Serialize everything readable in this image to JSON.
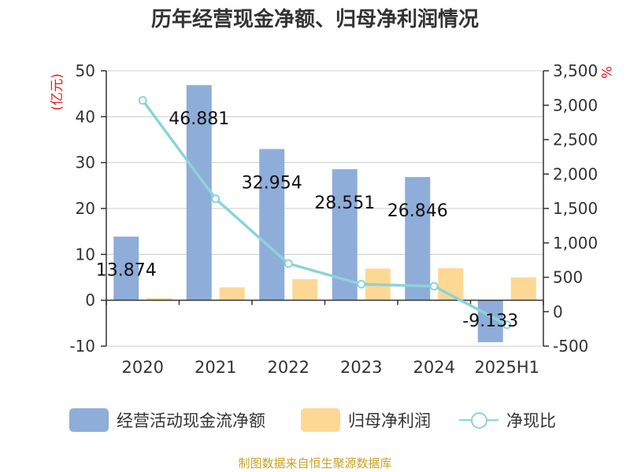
{
  "title": "历年经营现金净额、归母净利润情况",
  "source": "制图数据来自恒生聚源数据库",
  "chart_data": {
    "type": "bar",
    "categories": [
      "2020",
      "2021",
      "2022",
      "2023",
      "2024",
      "2025H1"
    ],
    "y_left": {
      "label": "(亿元)",
      "min": -10,
      "max": 50,
      "ticks": [
        "-10",
        "0",
        "10",
        "20",
        "30",
        "40",
        "50"
      ]
    },
    "y_right": {
      "label": "%",
      "min": -500,
      "max": 3500,
      "ticks": [
        "-500",
        "0",
        "500",
        "1,000",
        "1,500",
        "2,000",
        "2,500",
        "3,000",
        "3,500"
      ]
    },
    "series": [
      {
        "name": "经营活动现金流净额",
        "type": "bar",
        "axis": "left",
        "color": "#8eadd9",
        "values": [
          13.874,
          46.881,
          32.954,
          28.551,
          26.846,
          -9.133
        ],
        "labels": [
          "13.874",
          "46.881",
          "32.954",
          "28.551",
          "26.846",
          "-9.133"
        ]
      },
      {
        "name": "归母净利润",
        "type": "bar",
        "axis": "left",
        "color": "#fdd895",
        "values": [
          0.45,
          2.8,
          4.6,
          6.9,
          7.0,
          5.0
        ]
      },
      {
        "name": "净现比",
        "type": "line",
        "axis": "right",
        "color": "#8dd3d8",
        "values": [
          3070,
          1640,
          700,
          400,
          370,
          -190
        ]
      }
    ],
    "grid": true,
    "legend_position": "bottom"
  }
}
